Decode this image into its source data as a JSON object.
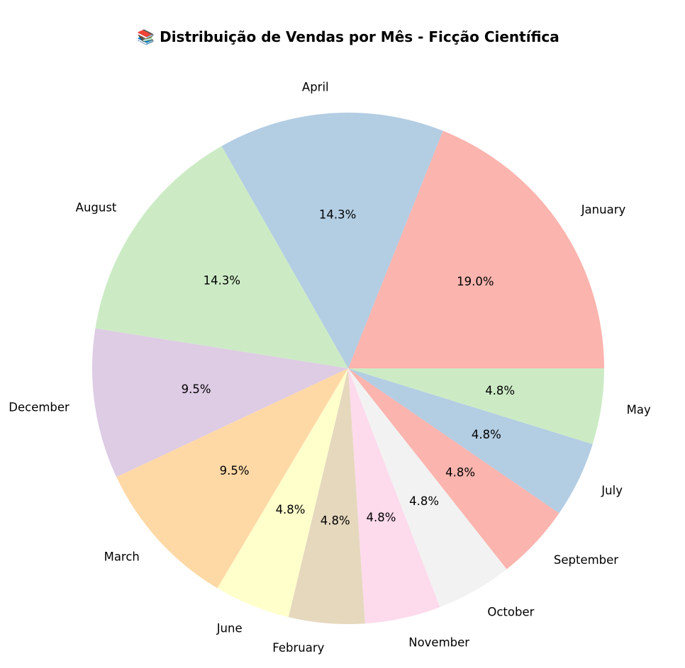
{
  "chart_data": {
    "type": "pie",
    "title": "📚 Distribuição de Vendas por Mês - Ficção Científica",
    "start_angle_deg": 0,
    "direction": "counterclockwise",
    "slices": [
      {
        "label": "January",
        "value": 19.0,
        "pct_label": "19.0%",
        "color": "#fbb4ae"
      },
      {
        "label": "April",
        "value": 14.3,
        "pct_label": "14.3%",
        "color": "#b3cde3"
      },
      {
        "label": "August",
        "value": 14.3,
        "pct_label": "14.3%",
        "color": "#ccebc5"
      },
      {
        "label": "December",
        "value": 9.5,
        "pct_label": "9.5%",
        "color": "#decbe4"
      },
      {
        "label": "March",
        "value": 9.5,
        "pct_label": "9.5%",
        "color": "#fed9a6"
      },
      {
        "label": "June",
        "value": 4.8,
        "pct_label": "4.8%",
        "color": "#ffffcc"
      },
      {
        "label": "February",
        "value": 4.8,
        "pct_label": "4.8%",
        "color": "#e5d8bd"
      },
      {
        "label": "November",
        "value": 4.8,
        "pct_label": "4.8%",
        "color": "#fddaec"
      },
      {
        "label": "October",
        "value": 4.8,
        "pct_label": "4.8%",
        "color": "#f2f2f2"
      },
      {
        "label": "September",
        "value": 4.8,
        "pct_label": "4.8%",
        "color": "#fbb4ae"
      },
      {
        "label": "July",
        "value": 4.8,
        "pct_label": "4.8%",
        "color": "#b3cde3"
      },
      {
        "label": "May",
        "value": 4.8,
        "pct_label": "4.8%",
        "color": "#ccebc5"
      }
    ]
  }
}
